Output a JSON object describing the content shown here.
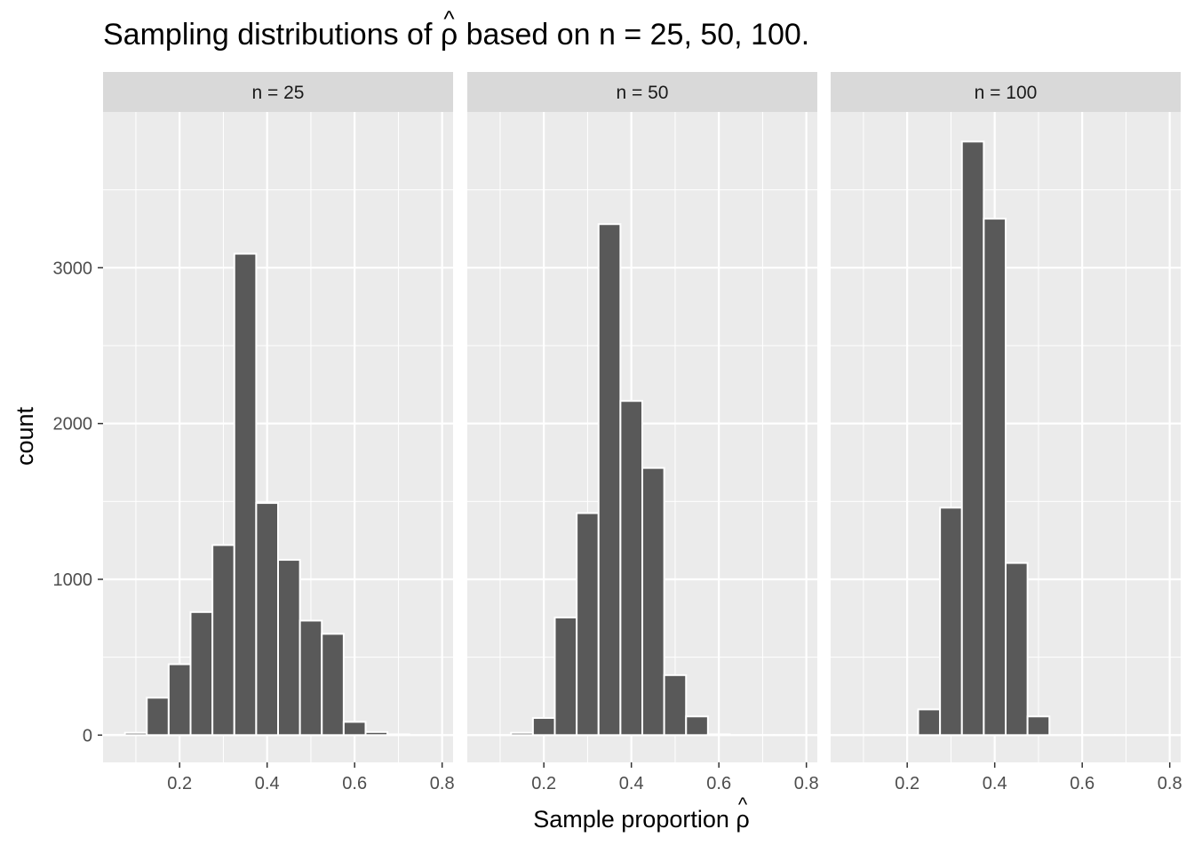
{
  "chart_data": {
    "type": "bar",
    "title": "Sampling distributions of ρ based on n = 25, 50, 100.",
    "title_hat_symbol": "^",
    "xlabel": "Sample proportion ρ",
    "xlabel_hat_symbol": "^",
    "ylabel": "count",
    "xlim": [
      0.025,
      0.825
    ],
    "ylim": [
      -175,
      4000
    ],
    "x_ticks": [
      0.2,
      0.4,
      0.6,
      0.8
    ],
    "x_tick_labels": [
      "0.2",
      "0.4",
      "0.6",
      "0.8"
    ],
    "y_ticks": [
      0,
      1000,
      2000,
      3000
    ],
    "y_tick_labels": [
      "0",
      "1000",
      "2000",
      "3000"
    ],
    "bin_width": 0.05,
    "bin_centers": [
      0.05,
      0.1,
      0.15,
      0.2,
      0.25,
      0.3,
      0.35,
      0.4,
      0.45,
      0.5,
      0.55,
      0.6,
      0.65,
      0.7,
      0.75,
      0.8
    ],
    "grid": true,
    "bar_color": "#595959",
    "bar_outline": "#ffffff",
    "panel_background": "#ebebeb",
    "strip_background": "#d9d9d9",
    "gridline_color": "#ffffff",
    "facets": [
      {
        "label": "n = 25",
        "values": [
          2,
          15,
          240,
          455,
          790,
          1220,
          3090,
          1490,
          1125,
          735,
          650,
          85,
          20,
          5,
          0,
          0
        ]
      },
      {
        "label": "n = 50",
        "values": [
          0,
          0,
          15,
          110,
          755,
          1425,
          3280,
          2145,
          1715,
          385,
          120,
          5,
          0,
          0,
          0,
          0
        ]
      },
      {
        "label": "n = 100",
        "values": [
          0,
          0,
          0,
          0,
          165,
          1460,
          3810,
          3315,
          1105,
          120,
          0,
          0,
          0,
          0,
          0,
          0
        ]
      }
    ]
  }
}
